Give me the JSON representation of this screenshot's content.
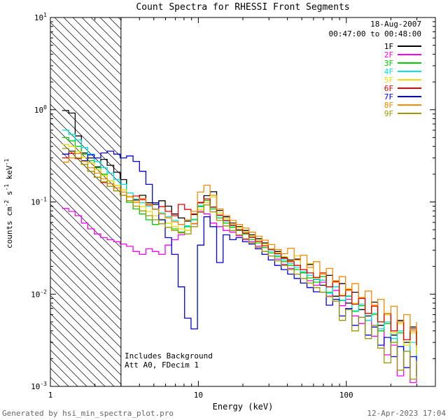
{
  "footer": {
    "left": "Generated by hsi_min_spectra_plot.pro",
    "right": "12-Apr-2023 17:04"
  },
  "chart_data": {
    "type": "line",
    "title": "Count Spectra for RHESSI Front Segments",
    "xlabel": "Energy (keV)",
    "ylabel": "counts cm^-2 s^-1 keV^-1",
    "xscale": "log",
    "yscale": "log",
    "xlim": [
      1,
      400
    ],
    "ylim": [
      0.001,
      10
    ],
    "x_ticks": [
      1,
      10,
      100
    ],
    "y_tick_exponents": [
      -3,
      -2,
      -1,
      0,
      1
    ],
    "grid": false,
    "legend_position": "top-right",
    "legend": {
      "date": "18-Aug-2007",
      "time_range": "00:47:00 to 00:48:00"
    },
    "annotations": [
      "Includes Background",
      "Att A0, FDecim 1"
    ],
    "hatch_region": {
      "from": 1,
      "to": 3
    },
    "energies_keV": [
      1.2,
      1.33,
      1.47,
      1.62,
      1.79,
      1.98,
      2.19,
      2.42,
      2.68,
      2.96,
      3.27,
      3.62,
      4.0,
      4.42,
      4.89,
      5.4,
      5.97,
      6.6,
      7.3,
      8.07,
      8.92,
      9.86,
      10.9,
      12.0,
      13.3,
      14.7,
      16.3,
      18.0,
      19.9,
      22.0,
      24.3,
      26.9,
      29.7,
      32.8,
      36.3,
      40.1,
      44.4,
      49.0,
      54.2,
      59.9,
      66.2,
      73.2,
      80.9,
      89.5,
      98.9,
      109,
      121,
      134,
      148,
      163,
      180,
      200,
      221,
      244,
      270,
      298
    ],
    "series": [
      {
        "name": "1F",
        "color": "#000000",
        "values": [
          0.98,
          0.92,
          0.52,
          0.34,
          0.3,
          0.24,
          0.29,
          0.25,
          0.21,
          0.175,
          0.115,
          0.105,
          0.118,
          0.098,
          0.094,
          0.103,
          0.09,
          0.074,
          0.067,
          0.062,
          0.073,
          0.098,
          0.117,
          0.129,
          0.081,
          0.069,
          0.059,
          0.054,
          0.049,
          0.044,
          0.04,
          0.036,
          0.031,
          0.029,
          0.025,
          0.0235,
          0.024,
          0.017,
          0.021,
          0.0145,
          0.0125,
          0.016,
          0.0095,
          0.013,
          0.008,
          0.0105,
          0.0068,
          0.0058,
          0.0082,
          0.0046,
          0.006,
          0.0036,
          0.0052,
          0.003,
          0.0044,
          0.0026
        ]
      },
      {
        "name": "2F",
        "color": "#ff00ff",
        "values": [
          0.085,
          0.079,
          0.071,
          0.059,
          0.051,
          0.045,
          0.041,
          0.039,
          0.037,
          0.035,
          0.033,
          0.029,
          0.027,
          0.031,
          0.029,
          0.027,
          0.034,
          0.039,
          0.044,
          0.049,
          0.058,
          0.079,
          0.074,
          0.059,
          0.054,
          0.049,
          0.047,
          0.043,
          0.039,
          0.037,
          0.033,
          0.029,
          0.026,
          0.024,
          0.021,
          0.019,
          0.0165,
          0.0185,
          0.014,
          0.0125,
          0.0135,
          0.0095,
          0.011,
          0.0075,
          0.0088,
          0.0058,
          0.0048,
          0.0062,
          0.0035,
          0.0042,
          0.0022,
          0.0028,
          0.0013,
          0.0024,
          0.0011,
          0.0017
        ]
      },
      {
        "name": "3F",
        "color": "#00cc00",
        "values": [
          0.5,
          0.46,
          0.4,
          0.33,
          0.28,
          0.235,
          0.2,
          0.17,
          0.15,
          0.135,
          0.099,
          0.084,
          0.074,
          0.064,
          0.057,
          0.064,
          0.059,
          0.051,
          0.047,
          0.054,
          0.064,
          0.089,
          0.104,
          0.084,
          0.067,
          0.059,
          0.053,
          0.049,
          0.045,
          0.039,
          0.036,
          0.032,
          0.028,
          0.0255,
          0.0225,
          0.0205,
          0.0185,
          0.017,
          0.015,
          0.0135,
          0.0155,
          0.0105,
          0.012,
          0.0085,
          0.0095,
          0.0065,
          0.0075,
          0.0052,
          0.006,
          0.004,
          0.0048,
          0.003,
          0.0038,
          0.0016,
          0.0042,
          0.002
        ]
      },
      {
        "name": "4F",
        "color": "#00e5e5",
        "values": [
          0.6,
          0.54,
          0.47,
          0.39,
          0.33,
          0.275,
          0.235,
          0.205,
          0.175,
          0.155,
          0.125,
          0.108,
          0.098,
          0.09,
          0.083,
          0.076,
          0.069,
          0.063,
          0.057,
          0.055,
          0.065,
          0.091,
          0.108,
          0.087,
          0.071,
          0.062,
          0.055,
          0.05,
          0.046,
          0.041,
          0.0375,
          0.0335,
          0.0295,
          0.0265,
          0.0235,
          0.0215,
          0.0195,
          0.0175,
          0.016,
          0.0146,
          0.0142,
          0.0102,
          0.012,
          0.0086,
          0.0096,
          0.0066,
          0.0078,
          0.0052,
          0.0062,
          0.0042,
          0.005,
          0.0033,
          0.004,
          0.0024,
          0.003,
          0.0019
        ]
      },
      {
        "name": "5F",
        "color": "#eedd00",
        "values": [
          0.42,
          0.4,
          0.355,
          0.305,
          0.265,
          0.225,
          0.195,
          0.17,
          0.15,
          0.135,
          0.115,
          0.1,
          0.089,
          0.079,
          0.071,
          0.065,
          0.059,
          0.054,
          0.051,
          0.049,
          0.059,
          0.083,
          0.098,
          0.113,
          0.076,
          0.066,
          0.058,
          0.053,
          0.048,
          0.043,
          0.039,
          0.035,
          0.031,
          0.028,
          0.0255,
          0.023,
          0.026,
          0.0185,
          0.0215,
          0.015,
          0.017,
          0.012,
          0.014,
          0.0098,
          0.0115,
          0.008,
          0.0092,
          0.0062,
          0.0075,
          0.005,
          0.006,
          0.0038,
          0.0048,
          0.0028,
          0.0038,
          0.0022
        ]
      },
      {
        "name": "6F",
        "color": "#ee0000",
        "values": [
          0.3,
          0.335,
          0.295,
          0.255,
          0.215,
          0.185,
          0.162,
          0.148,
          0.132,
          0.118,
          0.103,
          0.116,
          0.106,
          0.093,
          0.084,
          0.089,
          0.079,
          0.071,
          0.094,
          0.083,
          0.074,
          0.099,
          0.108,
          0.088,
          0.072,
          0.063,
          0.056,
          0.05,
          0.046,
          0.0415,
          0.0375,
          0.0335,
          0.0305,
          0.0275,
          0.0245,
          0.0225,
          0.0205,
          0.0185,
          0.017,
          0.0152,
          0.017,
          0.012,
          0.0138,
          0.0096,
          0.0112,
          0.0078,
          0.009,
          0.0062,
          0.0074,
          0.005,
          0.0062,
          0.004,
          0.005,
          0.0032,
          0.0042,
          0.0028
        ]
      },
      {
        "name": "7F",
        "color": "#0000ee",
        "values": [
          0.33,
          0.355,
          0.3,
          0.28,
          0.325,
          0.3,
          0.34,
          0.355,
          0.33,
          0.3,
          0.315,
          0.275,
          0.215,
          0.155,
          0.098,
          0.064,
          0.041,
          0.027,
          0.012,
          0.0055,
          0.0042,
          0.034,
          0.069,
          0.054,
          0.022,
          0.044,
          0.039,
          0.041,
          0.037,
          0.035,
          0.031,
          0.027,
          0.0235,
          0.0205,
          0.0185,
          0.0165,
          0.0148,
          0.0132,
          0.0118,
          0.0106,
          0.0105,
          0.0076,
          0.0088,
          0.0058,
          0.007,
          0.0046,
          0.0056,
          0.0036,
          0.0044,
          0.0028,
          0.0034,
          0.0021,
          0.0027,
          0.0016,
          0.0021,
          0.0013
        ]
      },
      {
        "name": "8F",
        "color": "#ff8800",
        "values": [
          0.27,
          0.3,
          0.335,
          0.275,
          0.235,
          0.205,
          0.178,
          0.158,
          0.142,
          0.128,
          0.113,
          0.099,
          0.109,
          0.094,
          0.084,
          0.074,
          0.067,
          0.061,
          0.057,
          0.064,
          0.079,
          0.128,
          0.152,
          0.118,
          0.084,
          0.071,
          0.063,
          0.057,
          0.052,
          0.047,
          0.0425,
          0.0385,
          0.0345,
          0.0305,
          0.0275,
          0.0315,
          0.0235,
          0.0265,
          0.0195,
          0.0225,
          0.0165,
          0.019,
          0.0135,
          0.0155,
          0.011,
          0.013,
          0.0092,
          0.0108,
          0.0076,
          0.0088,
          0.0062,
          0.0074,
          0.005,
          0.006,
          0.004,
          0.005
        ]
      },
      {
        "name": "9F",
        "color": "#9a9a00",
        "values": [
          0.38,
          0.35,
          0.3,
          0.255,
          0.215,
          0.185,
          0.165,
          0.148,
          0.132,
          0.118,
          0.103,
          0.09,
          0.08,
          0.071,
          0.064,
          0.058,
          0.053,
          0.049,
          0.046,
          0.045,
          0.054,
          0.077,
          0.093,
          0.078,
          0.063,
          0.055,
          0.049,
          0.044,
          0.04,
          0.036,
          0.032,
          0.029,
          0.026,
          0.023,
          0.0205,
          0.0185,
          0.0165,
          0.0148,
          0.0132,
          0.0118,
          0.0105,
          0.0094,
          0.0084,
          0.0052,
          0.0068,
          0.004,
          0.0056,
          0.0033,
          0.0046,
          0.0026,
          0.0018,
          0.003,
          0.0015,
          0.0024,
          0.0012,
          0.0019
        ]
      }
    ]
  }
}
